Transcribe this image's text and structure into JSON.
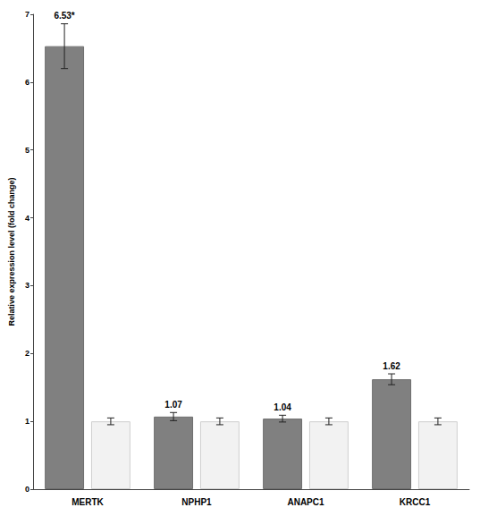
{
  "chart_data": {
    "type": "bar",
    "y_label": "Relative expression level (fold change)",
    "categories": [
      "MERTK",
      "NPHP1",
      "ANAPC1",
      "KRCC1"
    ],
    "series": [
      {
        "color": "#808080",
        "values": [
          6.53,
          1.07,
          1.04,
          1.62
        ],
        "errors": [
          0.33,
          0.06,
          0.05,
          0.08
        ],
        "data_labels": true,
        "value_labels": [
          "6.53*",
          "1.07",
          "1.04",
          "1.62"
        ]
      },
      {
        "color": "#f2f2f2",
        "values": [
          1,
          1,
          1,
          1
        ],
        "errors": [
          0.05,
          0.05,
          0.05,
          0.05
        ],
        "data_labels": false
      }
    ],
    "ylim": [
      0,
      7
    ],
    "yticks": [
      0,
      1,
      2,
      3,
      4,
      5,
      6,
      7
    ],
    "grid": false
  }
}
